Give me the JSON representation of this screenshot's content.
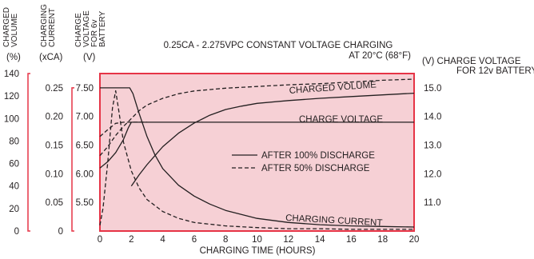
{
  "chart_data": {
    "type": "line",
    "title": "0.25CA - 2.275VPC CONSTANT VOLTAGE CHARGING",
    "subtitle": "AT 20°C (68°F)",
    "xlabel": "CHARGING TIME (HOURS)",
    "xlim": [
      0,
      20
    ],
    "x_ticks": [
      "0",
      "2",
      "4",
      "6",
      "8",
      "10",
      "12",
      "14",
      "16",
      "18",
      "20"
    ],
    "axes": {
      "volume": {
        "header": [
          "CHARGED",
          "VOLUME"
        ],
        "unit": "(%)",
        "range": [
          0,
          140
        ],
        "ticks": [
          "0",
          "20",
          "40",
          "60",
          "80",
          "100",
          "120",
          "140"
        ]
      },
      "current": {
        "header": [
          "CHARGING",
          "CURRENT"
        ],
        "unit": "(xCA)",
        "range": [
          0,
          0.275
        ],
        "ticks": [
          "0",
          "0.05",
          "0.10",
          "0.15",
          "0.20",
          "0.25"
        ]
      },
      "voltage_6v": {
        "header": [
          "CHARGE",
          "VOLTAGE",
          "FOR 6v",
          "BATTERY"
        ],
        "unit": "(V)",
        "range": [
          5.0,
          7.75
        ],
        "ticks": [
          "5.50",
          "6.00",
          "6.50",
          "7.00",
          "7.50"
        ]
      },
      "voltage_12v": {
        "header": [
          "(V) CHARGE VOLTAGE",
          "FOR 12v BATTERY"
        ],
        "range": [
          10.0,
          15.5
        ],
        "ticks": [
          "11.0",
          "12.0",
          "13.0",
          "14.0",
          "15.0"
        ]
      }
    },
    "legend": {
      "position": "center-right",
      "entries": [
        {
          "label": "AFTER 100% DISCHARGE",
          "style": "solid"
        },
        {
          "label": "AFTER 50% DISCHARGE",
          "style": "dashed"
        }
      ]
    },
    "curve_labels": {
      "volume": "CHARGED VOLUME",
      "voltage": "CHARGE VOLTAGE",
      "current": "CHARGING CURRENT"
    },
    "series": [
      {
        "group": "volume",
        "discharge": "100%",
        "style": "solid",
        "axis": "volume",
        "x": [
          2,
          2.5,
          3,
          3.5,
          4,
          5,
          6,
          7,
          8,
          9,
          10,
          12,
          14,
          16,
          18,
          20
        ],
        "y": [
          40,
          50,
          59,
          67,
          75,
          87,
          96,
          103,
          108,
          111,
          113.5,
          116,
          118,
          119.5,
          121,
          122.5
        ]
      },
      {
        "group": "volume",
        "discharge": "50%",
        "style": "dashed",
        "axis": "volume",
        "x": [
          0,
          0.5,
          1,
          1.5,
          2,
          2.5,
          3,
          4,
          5,
          6,
          8,
          10,
          12,
          14,
          16,
          18,
          20
        ],
        "y": [
          67,
          75,
          85,
          93,
          100,
          107,
          112,
          118,
          122,
          124.5,
          127,
          128.5,
          130,
          131,
          132.5,
          134,
          135
        ]
      },
      {
        "group": "voltage",
        "discharge": "100%",
        "style": "solid",
        "axis": "voltage_6v",
        "x": [
          0,
          0.5,
          1,
          1.5,
          1.8,
          2,
          2.5,
          3,
          3.5,
          4,
          4.5,
          5,
          6,
          8,
          10,
          12,
          14,
          16,
          18,
          20
        ],
        "y": [
          6.1,
          6.21,
          6.37,
          6.6,
          6.8,
          6.9,
          6.9,
          6.9,
          6.9,
          6.9,
          6.9,
          6.9,
          6.9,
          6.9,
          6.9,
          6.9,
          6.9,
          6.9,
          6.9,
          6.9
        ]
      },
      {
        "group": "voltage",
        "discharge": "50%",
        "style": "dashed",
        "axis": "voltage_6v",
        "x": [
          0,
          0.5,
          1,
          1.5,
          2,
          2.5,
          3
        ],
        "y": [
          6.65,
          6.77,
          6.88,
          6.9,
          6.9,
          6.9,
          6.9
        ]
      },
      {
        "group": "current",
        "discharge": "100%",
        "style": "solid",
        "axis": "current",
        "x": [
          0,
          1.9,
          2.1,
          2.5,
          3,
          3.5,
          4,
          5,
          6,
          7,
          8,
          10,
          12,
          14,
          16,
          18,
          20
        ],
        "y": [
          0.25,
          0.25,
          0.24,
          0.205,
          0.165,
          0.133,
          0.109,
          0.08,
          0.061,
          0.047,
          0.036,
          0.022,
          0.015,
          0.011,
          0.009,
          0.008,
          0.007
        ]
      },
      {
        "group": "current",
        "discharge": "50%",
        "style": "dashed",
        "axis": "current",
        "x": [
          0,
          0.2,
          0.5,
          0.8,
          1.0,
          1.2,
          1.5,
          2,
          2.5,
          3,
          4,
          5,
          6,
          8,
          10,
          12,
          14,
          16,
          18,
          20
        ],
        "y": [
          0.01,
          0.04,
          0.12,
          0.215,
          0.245,
          0.21,
          0.155,
          0.105,
          0.075,
          0.055,
          0.034,
          0.022,
          0.015,
          0.009,
          0.006,
          0.004,
          0.004,
          0.003,
          0.003,
          0.003
        ]
      }
    ]
  }
}
